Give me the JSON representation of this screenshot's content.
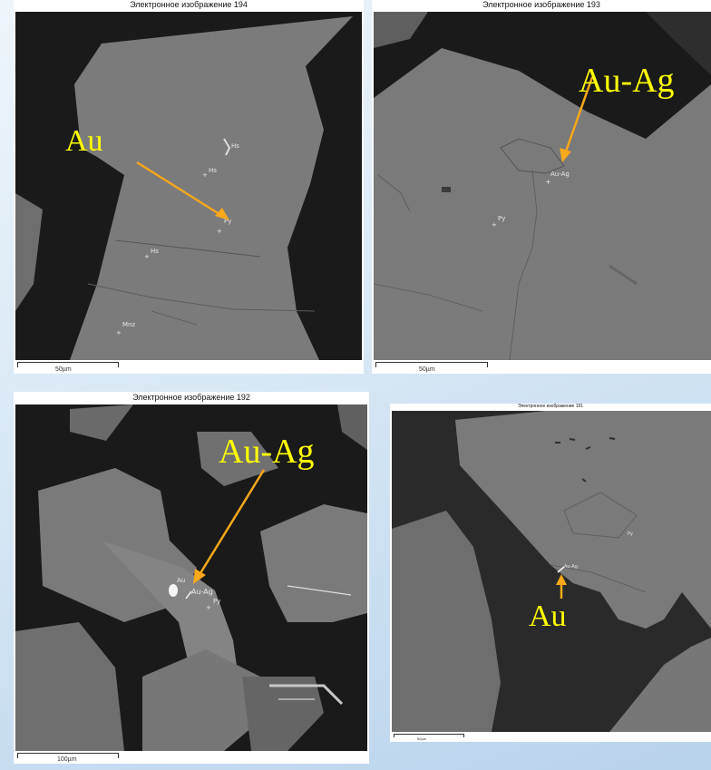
{
  "panels": {
    "p194": {
      "title": "Электронное изображение 194",
      "scale_label": "50µm",
      "points": [
        "Hs",
        "Hs",
        "Py",
        "Hs",
        "Mnz"
      ],
      "annotation": "Au"
    },
    "p193": {
      "title": "Электронное изображение 193",
      "scale_label": "50µm",
      "points": [
        "Au-Ag",
        "Py"
      ],
      "annotation": "Au-Ag"
    },
    "p192": {
      "title": "Электронное изображение 192",
      "scale_label": "100µm",
      "points": [
        "Au",
        "Au-Ag",
        "Py"
      ],
      "annotation": "Au-Ag"
    },
    "p191": {
      "title": "Электронное изображение 191",
      "scale_label": "50µm",
      "points": [
        "Py",
        "Au-Ag"
      ],
      "annotation": "Au"
    }
  },
  "colors": {
    "background": "#d8e8f5",
    "mineral_grain": "#7a7a7a",
    "resin": "#1a1a1a",
    "annotation_text": "#ffff00",
    "arrow": "#f7a81b"
  }
}
